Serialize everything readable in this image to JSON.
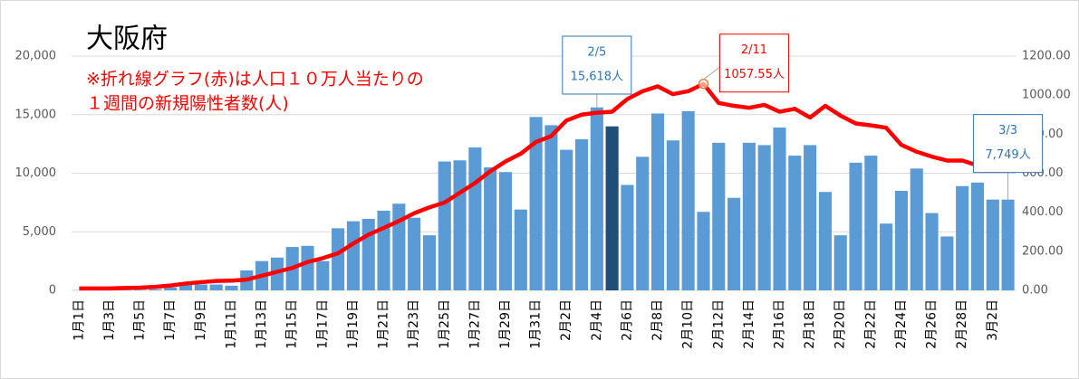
{
  "chart_data": {
    "type": "bar",
    "title": "大阪府",
    "notes": [
      "※折れ線グラフ(赤)は人口１０万人当たりの",
      "１週間の新規陽性者数(人)"
    ],
    "categories": [
      "1月1日",
      null,
      "1月3日",
      null,
      "1月5日",
      null,
      "1月7日",
      null,
      "1月9日",
      null,
      "1月11日",
      null,
      "1月13日",
      null,
      "1月15日",
      null,
      "1月17日",
      null,
      "1月19日",
      null,
      "1月21日",
      null,
      "1月23日",
      null,
      "1月25日",
      null,
      "1月27日",
      null,
      "1月29日",
      null,
      "1月31日",
      null,
      "2月2日",
      null,
      "2月4日",
      null,
      "2月6日",
      null,
      "2月8日",
      null,
      "2月10日",
      null,
      "2月12日",
      null,
      "2月14日",
      null,
      "2月16日",
      null,
      "2月18日",
      null,
      "2月20日",
      null,
      "2月22日",
      null,
      "2月24日",
      null,
      "2月26日",
      null,
      "2月28日",
      null,
      "3月2日",
      null
    ],
    "series": [
      {
        "type": "bar",
        "color": "#5b9bd5",
        "colors": [
          "#5b9bd5",
          "#5b9bd5",
          "#5b9bd5",
          "#5b9bd5",
          "#5b9bd5",
          "#5b9bd5",
          "#5b9bd5",
          "#5b9bd5",
          "#5b9bd5",
          "#5b9bd5",
          "#5b9bd5",
          "#5b9bd5",
          "#5b9bd5",
          "#5b9bd5",
          "#5b9bd5",
          "#5b9bd5",
          "#5b9bd5",
          "#5b9bd5",
          "#5b9bd5",
          "#5b9bd5",
          "#5b9bd5",
          "#5b9bd5",
          "#5b9bd5",
          "#5b9bd5",
          "#5b9bd5",
          "#5b9bd5",
          "#5b9bd5",
          "#5b9bd5",
          "#5b9bd5",
          "#5b9bd5",
          "#5b9bd5",
          "#5b9bd5",
          "#5b9bd5",
          "#5b9bd5",
          "#5b9bd5",
          "#1f4e79",
          "#5b9bd5",
          "#5b9bd5",
          "#5b9bd5",
          "#5b9bd5",
          "#5b9bd5",
          "#5b9bd5",
          "#5b9bd5",
          "#5b9bd5",
          "#5b9bd5",
          "#5b9bd5",
          "#5b9bd5",
          "#5b9bd5",
          "#5b9bd5",
          "#5b9bd5",
          "#5b9bd5",
          "#5b9bd5",
          "#5b9bd5",
          "#5b9bd5",
          "#5b9bd5",
          "#5b9bd5",
          "#5b9bd5",
          "#5b9bd5",
          "#5b9bd5",
          "#5b9bd5",
          "#5b9bd5",
          "#5b9bd5"
        ],
        "values": [
          10,
          20,
          20,
          30,
          50,
          100,
          250,
          500,
          500,
          500,
          400,
          1700,
          2500,
          2800,
          3700,
          3800,
          2500,
          5300,
          5900,
          6100,
          6800,
          7400,
          6200,
          4700,
          11000,
          11100,
          12200,
          10500,
          10100,
          6900,
          14800,
          14100,
          12000,
          12900,
          15618,
          14000,
          9000,
          11400,
          15100,
          12800,
          15300,
          6700,
          12600,
          7900,
          12600,
          12400,
          13900,
          11500,
          12400,
          8400,
          4700,
          10900,
          11500,
          5700,
          8500,
          10400,
          6600,
          4600,
          8900,
          9200,
          7749,
          7749
        ],
        "value_labels": [
          null,
          null,
          null,
          null,
          null,
          null,
          null,
          null,
          null,
          null,
          null,
          null,
          null,
          null,
          null,
          null,
          null,
          null,
          null,
          null,
          null,
          null,
          null,
          null,
          null,
          null,
          null,
          null,
          null,
          null,
          null,
          null,
          null,
          null,
          "15,618人",
          null,
          null,
          null,
          null,
          null,
          null,
          null,
          null,
          null,
          null,
          null,
          null,
          null,
          null,
          null,
          null,
          null,
          null,
          null,
          null,
          null,
          null,
          null,
          null,
          null,
          null,
          "7,749人"
        ],
        "value_label_titles": [
          null,
          null,
          null,
          null,
          null,
          null,
          null,
          null,
          null,
          null,
          null,
          null,
          null,
          null,
          null,
          null,
          null,
          null,
          null,
          null,
          null,
          null,
          null,
          null,
          null,
          null,
          null,
          null,
          null,
          null,
          null,
          null,
          null,
          null,
          "2/5",
          null,
          null,
          null,
          null,
          null,
          null,
          null,
          null,
          null,
          null,
          null,
          null,
          null,
          null,
          null,
          null,
          null,
          null,
          null,
          null,
          null,
          null,
          null,
          null,
          null,
          null,
          "3/3"
        ]
      },
      {
        "type": "line",
        "axis": "y2",
        "color": "#ff0000",
        "values": [
          10,
          10,
          10,
          12,
          14,
          18,
          25,
          35,
          42,
          48,
          50,
          55,
          75,
          95,
          115,
          145,
          165,
          190,
          240,
          285,
          320,
          355,
          395,
          425,
          450,
          500,
          550,
          610,
          660,
          700,
          760,
          790,
          870,
          900,
          910,
          915,
          980,
          1020,
          1045,
          1005,
          1020,
          1057.55,
          960,
          945,
          935,
          950,
          915,
          930,
          885,
          945,
          895,
          855,
          845,
          833,
          745,
          710,
          685,
          665,
          665,
          640,
          615,
          645
        ],
        "value_labels": [
          null,
          null,
          null,
          null,
          null,
          null,
          null,
          null,
          null,
          null,
          null,
          null,
          null,
          null,
          null,
          null,
          null,
          null,
          null,
          null,
          null,
          null,
          null,
          null,
          null,
          null,
          null,
          null,
          null,
          null,
          null,
          null,
          null,
          null,
          null,
          null,
          null,
          null,
          null,
          null,
          null,
          "1057.55人",
          null,
          null,
          null,
          null,
          null,
          null,
          null,
          null,
          null,
          null,
          null,
          null,
          null,
          null,
          null,
          null,
          null,
          null,
          null,
          null
        ],
        "value_label_titles": [
          null,
          null,
          null,
          null,
          null,
          null,
          null,
          null,
          null,
          null,
          null,
          null,
          null,
          null,
          null,
          null,
          null,
          null,
          null,
          null,
          null,
          null,
          null,
          null,
          null,
          null,
          null,
          null,
          null,
          null,
          null,
          null,
          null,
          null,
          null,
          null,
          null,
          null,
          null,
          null,
          null,
          "2/11",
          null,
          null,
          null,
          null,
          null,
          null,
          null,
          null,
          null,
          null,
          null,
          null,
          null,
          null,
          null,
          null,
          null,
          null,
          null,
          null
        ]
      }
    ],
    "ylim": [
      0,
      20000
    ],
    "yticks": [
      0,
      {
        "value": 5000,
        "label": "5,000"
      },
      {
        "value": 10000,
        "label": "10,000"
      },
      {
        "value": 15000,
        "label": "15,000"
      },
      {
        "value": 20000,
        "label": "20,000"
      }
    ],
    "y2lim": [
      0,
      1200
    ],
    "y2ticks": [
      {
        "value": 0,
        "label": "0.00"
      },
      {
        "value": 200,
        "label": "200.00"
      },
      {
        "value": 400,
        "label": "400.00"
      },
      {
        "value": 600,
        "label": "600.00"
      },
      {
        "value": 800,
        "label": "800.00"
      },
      {
        "value": 1000,
        "label": "1000.00"
      },
      {
        "value": 1200,
        "label": "1200.00"
      }
    ],
    "grid": true
  }
}
